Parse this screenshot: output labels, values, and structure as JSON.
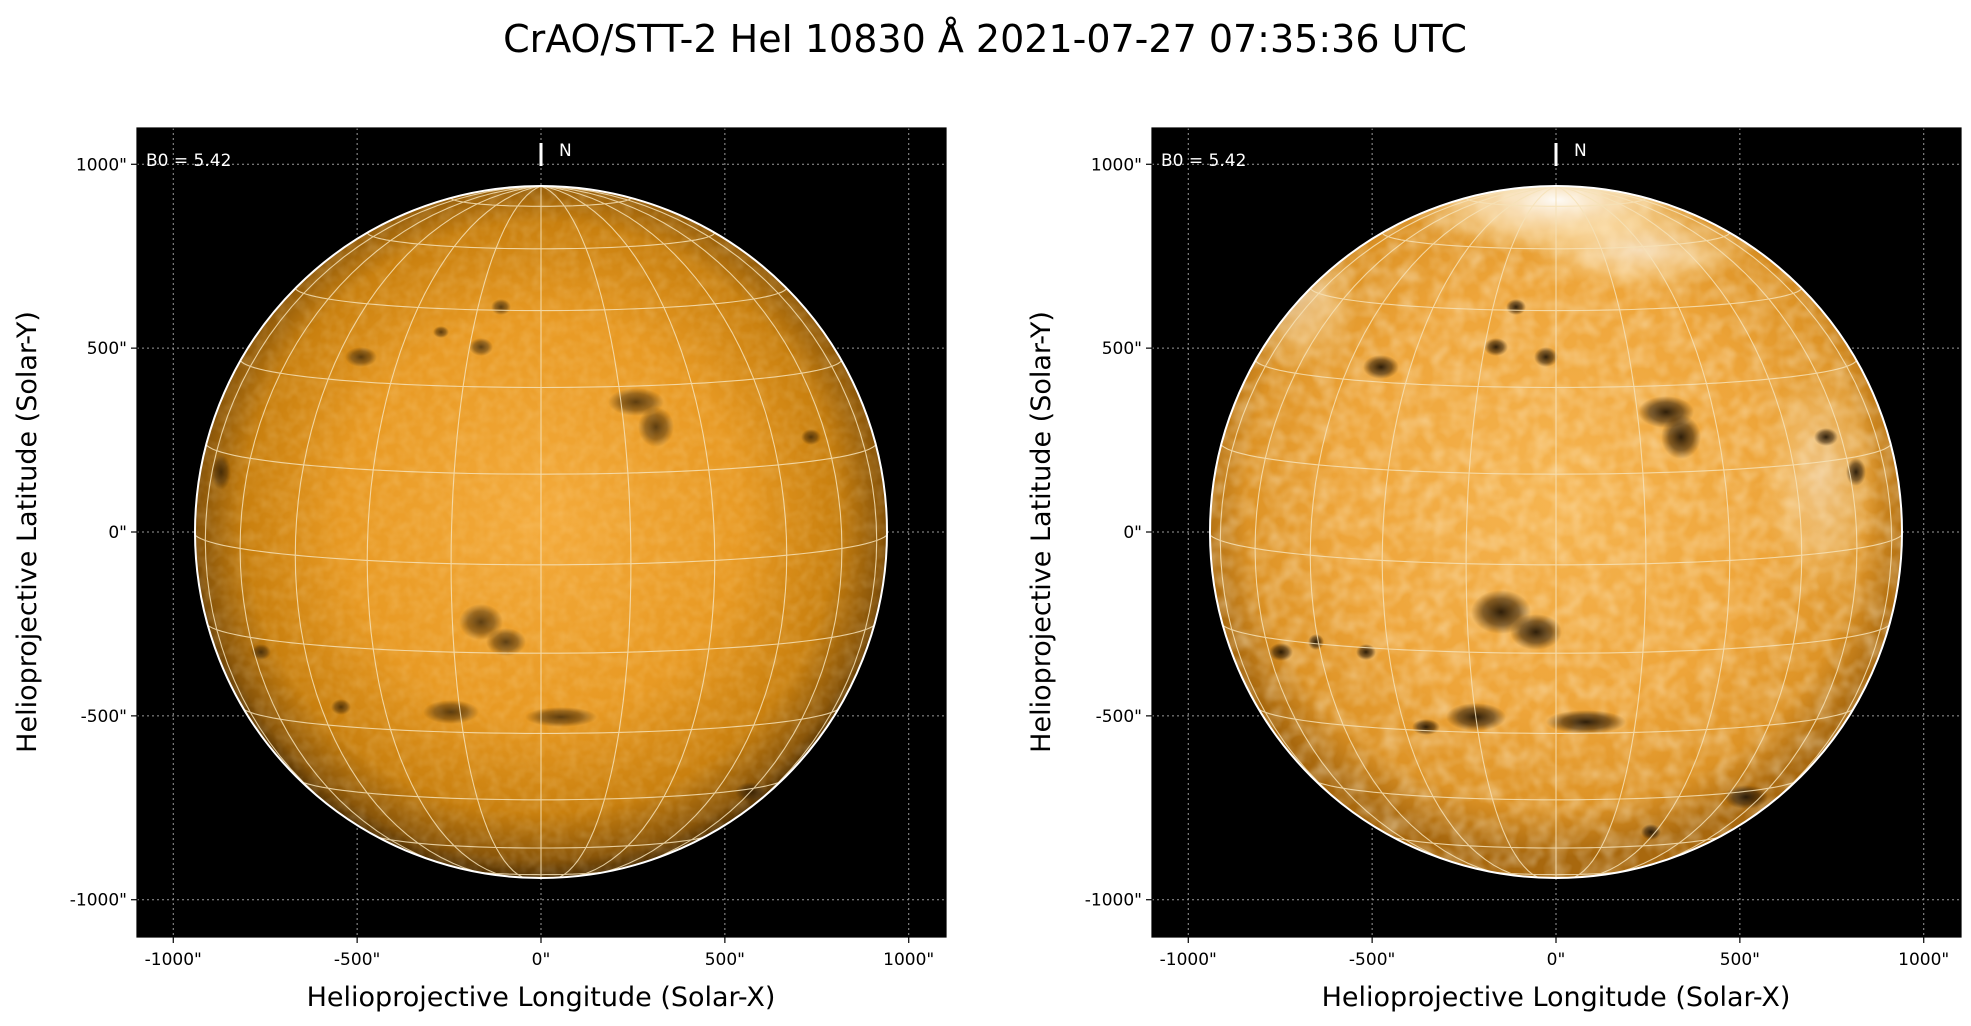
{
  "figure": {
    "title": "CrAO/STT-2 HeI 10830 Å 2021-07-27 07:35:36 UTC"
  },
  "panels": [
    {
      "id": "left",
      "image_style": "normal-contrast",
      "b0_label": "B0 = 5.42",
      "north_label": "N",
      "xlabel": "Helioprojective Longitude (Solar-X)",
      "ylabel": "Helioprojective Latitude (Solar-Y)",
      "x_ticks": [
        "-1000\"",
        "-500\"",
        "0\"",
        "500\"",
        "1000\""
      ],
      "y_ticks": [
        "1000\"",
        "500\"",
        "0\"",
        "-500\"",
        "-1000\""
      ]
    },
    {
      "id": "right",
      "image_style": "enhanced-contrast",
      "b0_label": "B0 = 5.42",
      "north_label": "N",
      "xlabel": "Helioprojective Longitude (Solar-X)",
      "ylabel": "Helioprojective Latitude (Solar-Y)",
      "x_ticks": [
        "-1000\"",
        "-500\"",
        "0\"",
        "500\"",
        "1000\""
      ],
      "y_ticks": [
        "1000\"",
        "500\"",
        "0\"",
        "-500\"",
        "-1000\""
      ]
    }
  ],
  "axes": {
    "x_range_arcsec": [
      -1100,
      1100
    ],
    "y_range_arcsec": [
      -1100,
      1100
    ],
    "tick_values_arcsec": [
      -1000,
      -500,
      0,
      500,
      1000
    ],
    "solar_radius_arcsec": 945,
    "b0_degrees": 5.42,
    "graticule_spacing_degrees": 15
  },
  "colors": {
    "background": "#000000",
    "disk_center": "#f2a73a",
    "disk_limb": "#5a3605",
    "grid": "#ffffff"
  }
}
